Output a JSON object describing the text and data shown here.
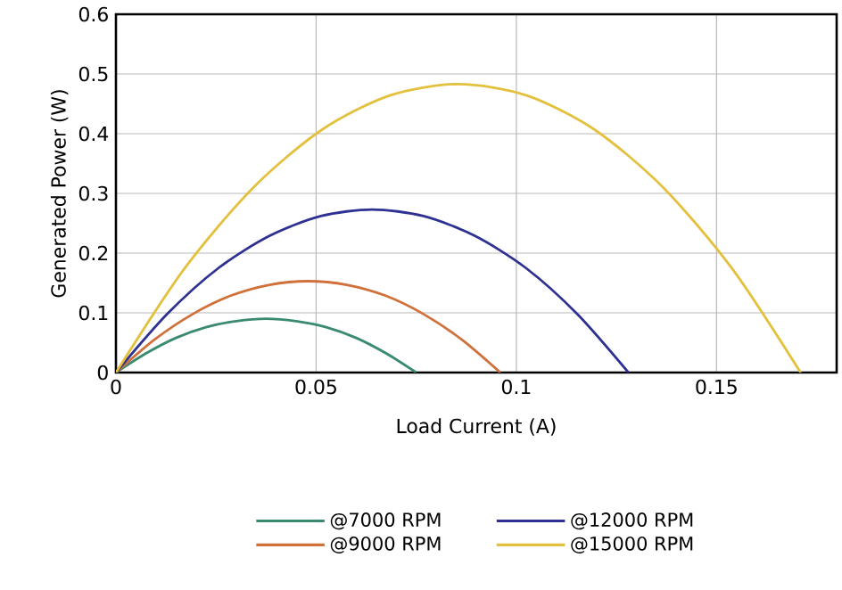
{
  "chart_data": {
    "type": "line",
    "xlabel": "Load Current (A)",
    "ylabel": "Generated Power (W)",
    "xlim": [
      0,
      0.18
    ],
    "xticks": [
      0,
      0.05,
      0.1,
      0.15
    ],
    "ylim": [
      0,
      0.6
    ],
    "yticks": [
      0,
      0.1,
      0.2,
      0.3,
      0.4,
      0.5,
      0.6
    ],
    "grid": true,
    "legend": "bottom",
    "marker": "none",
    "line_style": "solid",
    "series": [
      {
        "name": "@7000 RPM",
        "color": "#3a8a6e",
        "x": [
          0,
          0.0075,
          0.015,
          0.0225,
          0.03,
          0.0375,
          0.045,
          0.0525,
          0.06,
          0.0675,
          0.075
        ],
        "values": [
          0,
          0.032,
          0.058,
          0.076,
          0.086,
          0.09,
          0.086,
          0.076,
          0.058,
          0.032,
          0
        ]
      },
      {
        "name": "@9000 RPM",
        "color": "#d0703a",
        "x": [
          0,
          0.0096,
          0.0192,
          0.0288,
          0.0384,
          0.048,
          0.0576,
          0.0672,
          0.0768,
          0.0864,
          0.096
        ],
        "values": [
          0,
          0.055,
          0.098,
          0.129,
          0.147,
          0.153,
          0.147,
          0.129,
          0.098,
          0.055,
          0
        ]
      },
      {
        "name": "@12000 RPM",
        "color": "#2e3192",
        "x": [
          0,
          0.0128,
          0.0256,
          0.0384,
          0.0512,
          0.064,
          0.0768,
          0.0896,
          0.1024,
          0.1152,
          0.128
        ],
        "values": [
          0,
          0.098,
          0.175,
          0.229,
          0.262,
          0.273,
          0.262,
          0.229,
          0.175,
          0.098,
          0
        ]
      },
      {
        "name": "@15000 RPM",
        "color": "#e3c03d",
        "x": [
          0,
          0.0171,
          0.0342,
          0.0513,
          0.0684,
          0.0855,
          0.1026,
          0.1197,
          0.1368,
          0.1539,
          0.171
        ],
        "values": [
          0,
          0.174,
          0.309,
          0.406,
          0.464,
          0.483,
          0.464,
          0.406,
          0.309,
          0.174,
          0
        ]
      }
    ]
  }
}
